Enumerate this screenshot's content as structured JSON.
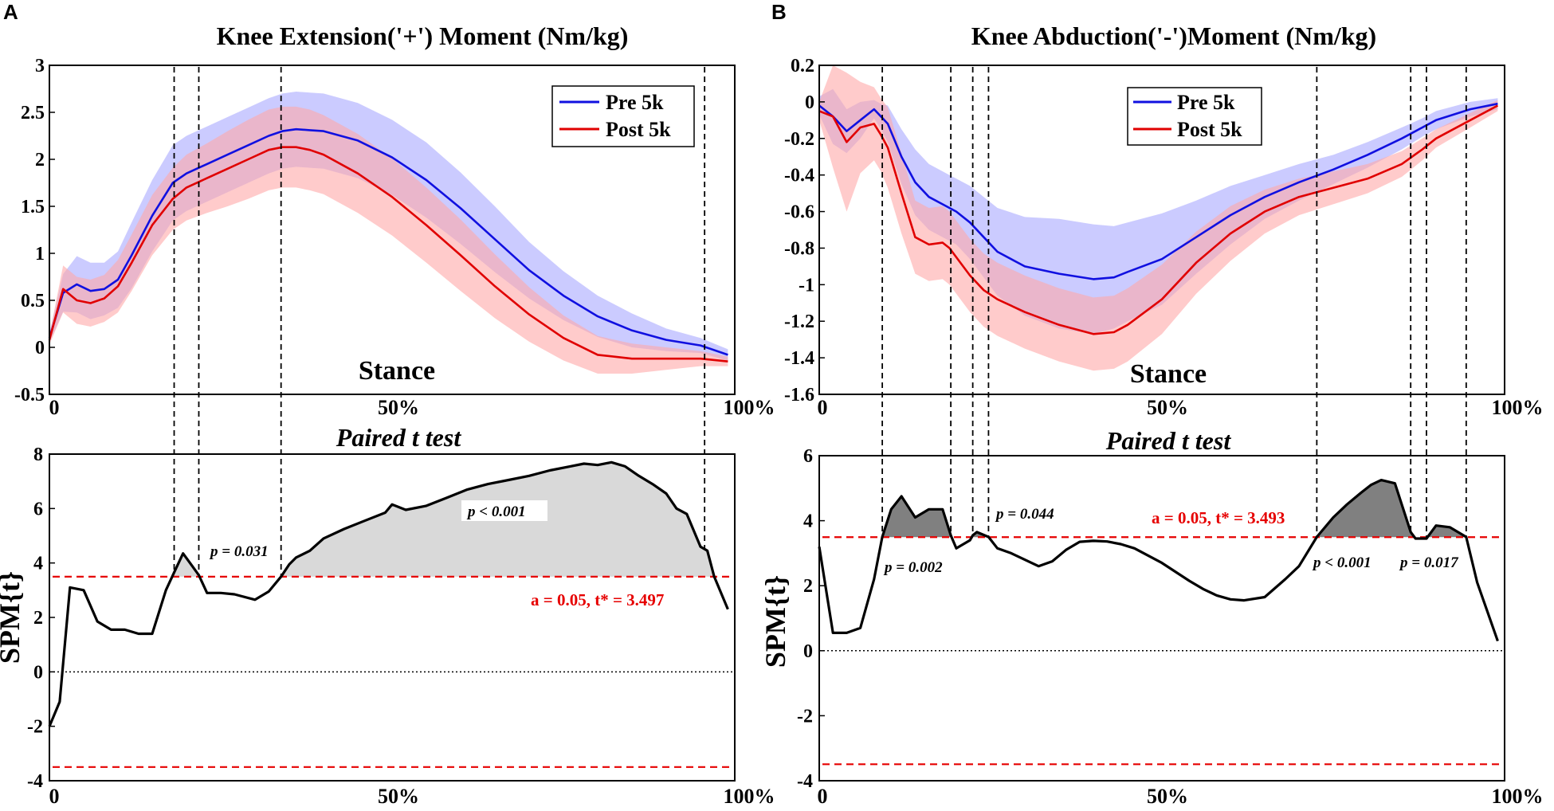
{
  "chart_data": [
    {
      "panel": "A",
      "type": "line",
      "title": "Knee Extension('+') Moment (Nm/kg)",
      "xlabel": "Stance",
      "xlim": [
        0,
        100
      ],
      "ylim": [
        -0.5,
        3
      ],
      "yticks": [
        -0.5,
        0,
        0.5,
        1,
        1.5,
        2,
        2.5,
        3
      ],
      "ytick_labels": [
        "-0.5",
        "0",
        "0.5",
        "1",
        "1.5",
        "2",
        "2.5",
        "3"
      ],
      "xtick_labels": [
        "0",
        "50%",
        "100%"
      ],
      "legend": [
        "Pre 5k",
        "Post 5k"
      ],
      "legend_position": "top-right",
      "x": [
        0,
        2,
        4,
        6,
        8,
        10,
        12,
        15,
        18,
        20,
        23,
        26,
        29,
        32,
        34,
        36,
        38,
        40,
        45,
        50,
        55,
        60,
        65,
        70,
        75,
        80,
        85,
        90,
        95,
        99
      ],
      "series": [
        {
          "name": "Pre 5k",
          "color": "#1010e0",
          "band_color": "#a8a8ff",
          "values": [
            0.1,
            0.58,
            0.67,
            0.6,
            0.62,
            0.72,
            0.98,
            1.4,
            1.75,
            1.85,
            1.95,
            2.05,
            2.15,
            2.25,
            2.3,
            2.32,
            2.31,
            2.3,
            2.2,
            2.02,
            1.78,
            1.48,
            1.15,
            0.82,
            0.55,
            0.33,
            0.18,
            0.08,
            0.02,
            -0.08
          ],
          "spread": [
            0.05,
            0.2,
            0.3,
            0.3,
            0.28,
            0.3,
            0.35,
            0.38,
            0.4,
            0.4,
            0.4,
            0.4,
            0.4,
            0.4,
            0.4,
            0.4,
            0.4,
            0.4,
            0.4,
            0.4,
            0.4,
            0.38,
            0.35,
            0.3,
            0.26,
            0.22,
            0.18,
            0.12,
            0.08,
            0.06
          ]
        },
        {
          "name": "Post 5k",
          "color": "#e00000",
          "band_color": "#ffa8a8",
          "values": [
            0.08,
            0.62,
            0.5,
            0.47,
            0.52,
            0.65,
            0.9,
            1.3,
            1.58,
            1.7,
            1.8,
            1.9,
            2.0,
            2.1,
            2.13,
            2.13,
            2.1,
            2.05,
            1.85,
            1.6,
            1.3,
            0.98,
            0.65,
            0.35,
            0.1,
            -0.08,
            -0.12,
            -0.12,
            -0.12,
            -0.15
          ],
          "spread": [
            0.05,
            0.25,
            0.25,
            0.25,
            0.25,
            0.28,
            0.3,
            0.32,
            0.33,
            0.35,
            0.37,
            0.4,
            0.42,
            0.43,
            0.43,
            0.43,
            0.43,
            0.42,
            0.42,
            0.41,
            0.4,
            0.38,
            0.34,
            0.29,
            0.24,
            0.2,
            0.16,
            0.12,
            0.08,
            0.05
          ]
        }
      ],
      "dashed_lines_x": [
        18.2,
        21.8,
        33.8,
        95.6
      ],
      "spm": {
        "title": "Paired t test",
        "ylabel": "SPM{t}",
        "ylim": [
          -4,
          8
        ],
        "yticks": [
          -4,
          -2,
          0,
          2,
          4,
          6,
          8
        ],
        "ytick_labels": [
          "-4",
          "-2",
          "0",
          "2",
          "4",
          "6",
          "8"
        ],
        "xtick_labels": [
          "0",
          "50%",
          "100%"
        ],
        "threshold": 3.497,
        "threshold_label": "a = 0.05, t* = 3.497",
        "x": [
          0,
          1.5,
          3,
          5,
          7,
          9,
          11,
          13,
          15,
          17,
          18.2,
          19.5,
          20.8,
          21.8,
          23,
          25,
          27,
          30,
          32,
          33.8,
          35,
          36,
          38,
          40,
          43,
          46,
          49,
          50,
          52,
          55,
          58,
          61,
          64,
          67,
          70,
          73,
          76,
          78,
          80,
          82,
          84,
          86,
          88,
          90,
          91.5,
          93,
          95,
          96,
          97,
          99
        ],
        "values": [
          -2.0,
          -1.1,
          3.1,
          3.0,
          1.85,
          1.55,
          1.55,
          1.4,
          1.4,
          3.0,
          3.65,
          4.35,
          3.9,
          3.55,
          2.9,
          2.9,
          2.85,
          2.65,
          2.95,
          3.5,
          3.95,
          4.2,
          4.45,
          4.9,
          5.25,
          5.55,
          5.85,
          6.15,
          5.95,
          6.1,
          6.4,
          6.7,
          6.9,
          7.05,
          7.2,
          7.4,
          7.55,
          7.65,
          7.6,
          7.7,
          7.55,
          7.2,
          6.9,
          6.55,
          6.0,
          5.8,
          4.6,
          4.45,
          3.5,
          2.3
        ],
        "annotations": [
          "p = 0.031",
          "p < 0.001"
        ]
      }
    },
    {
      "panel": "B",
      "type": "line",
      "title": "Knee Abduction('-')Moment (Nm/kg)",
      "xlabel": "Stance",
      "xlim": [
        0,
        100
      ],
      "ylim": [
        -1.6,
        0.2
      ],
      "yticks": [
        -1.6,
        -1.4,
        -1.2,
        -1,
        -0.8,
        -0.6,
        -0.4,
        -0.2,
        0,
        0.2
      ],
      "ytick_labels": [
        "-1.6",
        "-1.4",
        "-1.2",
        "-1",
        "-0.8",
        "-0.6",
        "-0.4",
        "-0.2",
        "0",
        "0.2"
      ],
      "xtick_labels": [
        "0",
        "50%",
        "100%"
      ],
      "legend": [
        "Pre 5k",
        "Post 5k"
      ],
      "legend_position": "top-right",
      "x": [
        0,
        2,
        4,
        6,
        8,
        9,
        10,
        12,
        14,
        16,
        18,
        19,
        20,
        22,
        24,
        26,
        30,
        35,
        40,
        43,
        45,
        50,
        55,
        60,
        65,
        70,
        75,
        80,
        85,
        88,
        90,
        95,
        99
      ],
      "series": [
        {
          "name": "Pre 5k",
          "color": "#1010e0",
          "band_color": "#a8a8ff",
          "values": [
            -0.02,
            -0.08,
            -0.16,
            -0.1,
            -0.04,
            -0.08,
            -0.12,
            -0.3,
            -0.44,
            -0.52,
            -0.56,
            -0.58,
            -0.6,
            -0.66,
            -0.74,
            -0.82,
            -0.9,
            -0.94,
            -0.97,
            -0.96,
            -0.93,
            -0.86,
            -0.74,
            -0.62,
            -0.52,
            -0.44,
            -0.37,
            -0.29,
            -0.2,
            -0.14,
            -0.1,
            -0.04,
            -0.01
          ],
          "spread": [
            0.05,
            0.15,
            0.12,
            0.1,
            0.05,
            0.07,
            0.1,
            0.15,
            0.18,
            0.18,
            0.18,
            0.18,
            0.18,
            0.2,
            0.22,
            0.24,
            0.27,
            0.3,
            0.3,
            0.28,
            0.27,
            0.25,
            0.2,
            0.16,
            0.12,
            0.1,
            0.08,
            0.07,
            0.06,
            0.05,
            0.05,
            0.04,
            0.03
          ]
        },
        {
          "name": "Post 5k",
          "color": "#e00000",
          "band_color": "#ffa8a8",
          "values": [
            -0.05,
            -0.08,
            -0.22,
            -0.14,
            -0.12,
            -0.18,
            -0.25,
            -0.5,
            -0.74,
            -0.78,
            -0.77,
            -0.8,
            -0.85,
            -0.95,
            -1.03,
            -1.08,
            -1.15,
            -1.22,
            -1.27,
            -1.26,
            -1.22,
            -1.08,
            -0.88,
            -0.72,
            -0.6,
            -0.52,
            -0.47,
            -0.42,
            -0.34,
            -0.26,
            -0.2,
            -0.1,
            -0.02
          ],
          "spread": [
            0.05,
            0.28,
            0.38,
            0.25,
            0.2,
            0.2,
            0.22,
            0.22,
            0.2,
            0.2,
            0.2,
            0.2,
            0.2,
            0.2,
            0.2,
            0.2,
            0.2,
            0.2,
            0.2,
            0.2,
            0.2,
            0.19,
            0.17,
            0.15,
            0.12,
            0.1,
            0.09,
            0.08,
            0.07,
            0.06,
            0.05,
            0.04,
            0.03
          ]
        }
      ],
      "dashed_lines_x": [
        9.2,
        19.2,
        22.4,
        24.7,
        72.6,
        86.3,
        88.6,
        94.4
      ],
      "spm": {
        "title": "Paired t test",
        "ylabel": "SPM{t}",
        "ylim": [
          -4,
          6
        ],
        "yticks": [
          -4,
          -2,
          0,
          2,
          4,
          6
        ],
        "ytick_labels": [
          "-4",
          "-2",
          "0",
          "2",
          "4",
          "6"
        ],
        "xtick_labels": [
          "0",
          "50%",
          "100%"
        ],
        "threshold": 3.493,
        "threshold_label": "a = 0.05, t* = 3.493",
        "x": [
          0,
          2,
          4,
          6,
          8,
          9.2,
          10.5,
          12,
          14,
          16,
          18,
          19.2,
          20,
          22,
          22.4,
          23,
          24.7,
          26,
          28,
          30,
          32,
          34,
          36,
          38,
          40,
          42,
          44,
          46,
          50,
          54,
          56,
          58,
          60,
          62,
          65,
          68,
          70,
          72.6,
          75,
          77,
          79,
          80.5,
          82,
          84,
          86.3,
          87,
          88.6,
          90,
          92,
          94.4,
          96,
          99
        ],
        "values": [
          3.2,
          0.55,
          0.55,
          0.7,
          2.2,
          3.5,
          4.35,
          4.75,
          4.1,
          4.35,
          4.35,
          3.55,
          3.15,
          3.4,
          3.55,
          3.65,
          3.5,
          3.15,
          3.0,
          2.8,
          2.6,
          2.75,
          3.1,
          3.35,
          3.38,
          3.36,
          3.28,
          3.15,
          2.7,
          2.15,
          1.9,
          1.7,
          1.58,
          1.55,
          1.65,
          2.2,
          2.6,
          3.5,
          4.1,
          4.5,
          4.85,
          5.1,
          5.25,
          5.15,
          3.65,
          3.45,
          3.45,
          3.85,
          3.8,
          3.5,
          2.1,
          0.3
        ],
        "annotations": [
          "p = 0.002",
          "p = 0.044",
          "p < 0.001",
          "p = 0.017"
        ]
      }
    }
  ],
  "panel_letters": [
    "A",
    "B"
  ]
}
